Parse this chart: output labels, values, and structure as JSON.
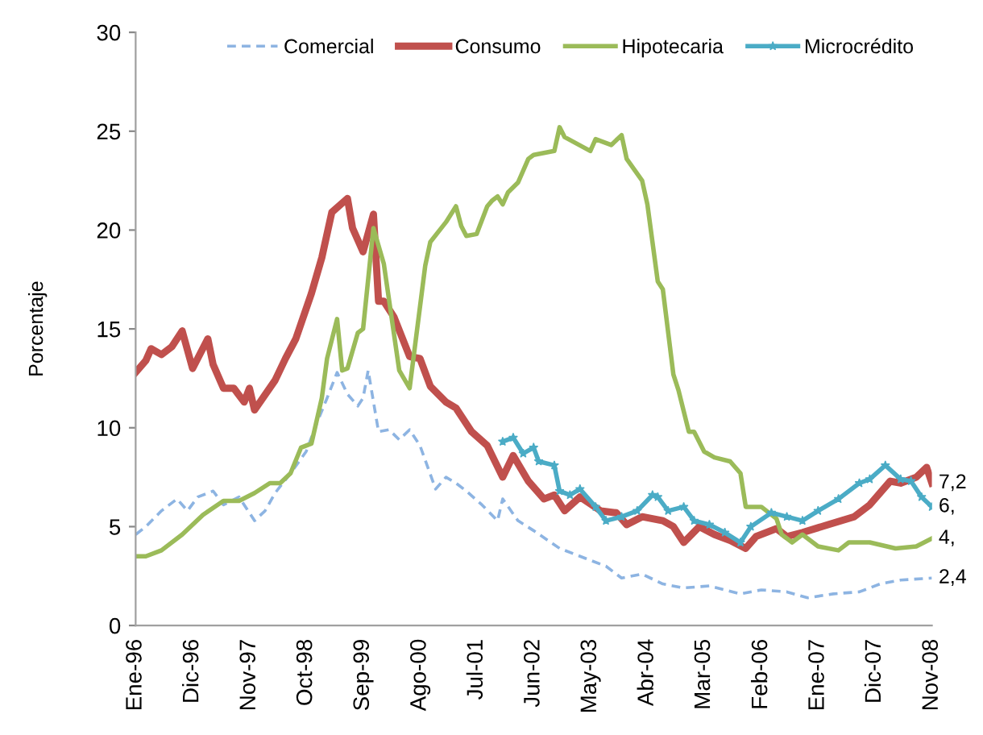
{
  "chart_data": {
    "type": "line",
    "ylabel": "Porcentaje",
    "legend": "top",
    "grid": false,
    "xlim": [
      "1996-01",
      "2008-11"
    ],
    "xticks": [
      {
        "value": "1996-01",
        "label": "Ene-96"
      },
      {
        "value": "1996-12",
        "label": "Dic-96"
      },
      {
        "value": "1997-11",
        "label": "Nov-97"
      },
      {
        "value": "1998-10",
        "label": "Oct-98"
      },
      {
        "value": "1999-09",
        "label": "Sep-99"
      },
      {
        "value": "2000-08",
        "label": "Ago-00"
      },
      {
        "value": "2001-07",
        "label": "Jul-01"
      },
      {
        "value": "2002-06",
        "label": "Jun-02"
      },
      {
        "value": "2003-05",
        "label": "May-03"
      },
      {
        "value": "2004-04",
        "label": "Abr-04"
      },
      {
        "value": "2005-03",
        "label": "Mar-05"
      },
      {
        "value": "2006-02",
        "label": "Feb-06"
      },
      {
        "value": "2007-01",
        "label": "Ene-07"
      },
      {
        "value": "2007-12",
        "label": "Dic-07"
      },
      {
        "value": "2008-11",
        "label": "Nov-08"
      }
    ],
    "ylim": [
      0,
      30
    ],
    "yticks": [
      0,
      5,
      10,
      15,
      20,
      25,
      30
    ],
    "series": [
      {
        "name": "Comercial",
        "color": "#8db4e2",
        "line_style": "dashed",
        "marker": "none",
        "x": [
          "1996-01",
          "1996-03",
          "1996-06",
          "1996-09",
          "1996-11",
          "1997-01",
          "1997-04",
          "1997-06",
          "1997-09",
          "1997-10",
          "1997-12",
          "1998-02",
          "1998-04",
          "1998-07",
          "1998-10",
          "1998-12",
          "1999-02",
          "1999-04",
          "1999-06",
          "1999-08",
          "1999-09",
          "1999-10",
          "1999-12",
          "2000-02",
          "2000-04",
          "2000-06",
          "2000-08",
          "2000-11",
          "2001-01",
          "2001-03",
          "2001-05",
          "2001-08",
          "2001-11",
          "2001-12",
          "2002-03",
          "2002-06",
          "2002-11",
          "2003-04",
          "2003-08",
          "2003-11",
          "2004-03",
          "2004-07",
          "2004-11",
          "2005-04",
          "2005-10",
          "2006-02",
          "2006-07",
          "2006-11",
          "2007-04",
          "2007-09",
          "2008-01",
          "2008-05",
          "2008-11"
        ],
        "values": [
          4.6,
          5.0,
          5.8,
          6.4,
          5.8,
          6.5,
          6.8,
          6.1,
          6.5,
          6.1,
          5.3,
          5.8,
          6.7,
          7.7,
          8.8,
          10.2,
          11.5,
          12.8,
          11.7,
          11.1,
          11.5,
          12.9,
          9.8,
          9.9,
          9.4,
          9.9,
          9.1,
          6.9,
          7.5,
          7.2,
          6.8,
          6.1,
          5.3,
          6.4,
          5.3,
          4.8,
          3.9,
          3.4,
          3.0,
          2.4,
          2.6,
          2.1,
          1.9,
          2.0,
          1.6,
          1.8,
          1.7,
          1.4,
          1.6,
          1.7,
          2.1,
          2.3,
          2.4
        ]
      },
      {
        "name": "Consumo",
        "color": "#c0504d",
        "line_style": "solid",
        "marker": "none",
        "x": [
          "1996-01",
          "1996-03",
          "1996-04",
          "1996-06",
          "1996-08",
          "1996-10",
          "1996-12",
          "1997-03",
          "1997-04",
          "1997-06",
          "1997-08",
          "1997-10",
          "1997-11",
          "1997-12",
          "1998-04",
          "1998-06",
          "1998-08",
          "1998-11",
          "1999-01",
          "1999-03",
          "1999-06",
          "1999-07",
          "1999-09",
          "1999-11",
          "1999-12",
          "2000-01",
          "2000-03",
          "2000-06",
          "2000-08",
          "2000-10",
          "2001-01",
          "2001-03",
          "2001-06",
          "2001-09",
          "2001-12",
          "2002-02",
          "2002-05",
          "2002-08",
          "2002-10",
          "2002-12",
          "2003-03",
          "2003-07",
          "2003-10",
          "2003-12",
          "2004-03",
          "2004-07",
          "2004-09",
          "2004-11",
          "2005-02",
          "2005-05",
          "2005-08",
          "2005-11",
          "2006-01",
          "2006-05",
          "2006-07",
          "2006-10",
          "2007-03",
          "2007-08",
          "2007-11",
          "2008-03",
          "2008-05",
          "2008-08",
          "2008-10",
          "2008-11"
        ],
        "values": [
          12.8,
          13.4,
          14.0,
          13.7,
          14.1,
          14.9,
          13.0,
          14.5,
          13.2,
          12.0,
          12.0,
          11.3,
          12.0,
          10.9,
          12.4,
          13.5,
          14.5,
          16.8,
          18.6,
          20.9,
          21.6,
          20.1,
          18.9,
          20.8,
          16.4,
          16.4,
          15.6,
          13.6,
          13.5,
          12.1,
          11.3,
          11.0,
          9.8,
          9.1,
          7.5,
          8.6,
          7.3,
          6.4,
          6.6,
          5.8,
          6.5,
          5.8,
          5.7,
          5.1,
          5.5,
          5.3,
          5.0,
          4.2,
          5.0,
          4.6,
          4.3,
          3.9,
          4.5,
          4.9,
          4.5,
          4.7,
          5.1,
          5.5,
          6.1,
          7.3,
          7.2,
          7.5,
          8.0,
          7.2
        ]
      },
      {
        "name": "Hipotecaria",
        "color": "#9bbb59",
        "line_style": "solid",
        "marker": "none",
        "x": [
          "1996-01",
          "1996-03",
          "1996-06",
          "1996-10",
          "1997-02",
          "1997-06",
          "1997-09",
          "1997-12",
          "1998-03",
          "1998-05",
          "1998-07",
          "1998-09",
          "1998-11",
          "1999-01",
          "1999-02",
          "1999-04",
          "1999-05",
          "1999-06",
          "1999-08",
          "1999-09",
          "1999-11",
          "2000-01",
          "2000-04",
          "2000-06",
          "2000-09",
          "2000-10",
          "2001-01",
          "2001-03",
          "2001-04",
          "2001-05",
          "2001-07",
          "2001-09",
          "2001-10",
          "2001-11",
          "2001-12",
          "2002-01",
          "2002-03",
          "2002-05",
          "2002-06",
          "2002-08",
          "2002-10",
          "2002-11",
          "2002-12",
          "2003-05",
          "2003-06",
          "2003-09",
          "2003-11",
          "2003-12",
          "2004-03",
          "2004-04",
          "2004-06",
          "2004-07",
          "2004-09",
          "2004-10",
          "2004-12",
          "2005-01",
          "2005-03",
          "2005-05",
          "2005-08",
          "2005-10",
          "2005-11",
          "2006-02",
          "2006-05",
          "2006-06",
          "2006-08",
          "2006-10",
          "2007-01",
          "2007-05",
          "2007-07",
          "2007-11",
          "2008-04",
          "2008-08",
          "2008-11"
        ],
        "values": [
          3.5,
          3.5,
          3.8,
          4.6,
          5.6,
          6.3,
          6.3,
          6.7,
          7.2,
          7.2,
          7.7,
          9.0,
          9.2,
          11.5,
          13.5,
          15.5,
          12.9,
          13.0,
          14.8,
          15.0,
          20.1,
          18.3,
          12.9,
          12.0,
          18.2,
          19.4,
          20.4,
          21.2,
          20.2,
          19.7,
          19.8,
          21.2,
          21.5,
          21.7,
          21.3,
          21.9,
          22.4,
          23.6,
          23.8,
          23.9,
          24.0,
          25.2,
          24.7,
          24.0,
          24.6,
          24.3,
          24.8,
          23.6,
          22.5,
          21.3,
          17.4,
          17.0,
          12.7,
          11.9,
          9.8,
          9.8,
          8.8,
          8.5,
          8.3,
          7.7,
          6.0,
          6.0,
          5.4,
          4.6,
          4.2,
          4.6,
          4.0,
          3.8,
          4.2,
          4.2,
          3.9,
          4.0,
          4.4
        ]
      },
      {
        "name": "Microcrédito",
        "color": "#4bacc6",
        "line_style": "solid",
        "marker": "star",
        "x": [
          "2001-12",
          "2002-02",
          "2002-04",
          "2002-06",
          "2002-07",
          "2002-10",
          "2002-11",
          "2003-01",
          "2003-03",
          "2003-06",
          "2003-08",
          "2003-11",
          "2004-02",
          "2004-05",
          "2004-06",
          "2004-08",
          "2004-11",
          "2005-01",
          "2005-04",
          "2005-07",
          "2005-10",
          "2005-12",
          "2006-04",
          "2006-07",
          "2006-10",
          "2007-01",
          "2007-05",
          "2007-09",
          "2007-11",
          "2008-02",
          "2008-05",
          "2008-07",
          "2008-09",
          "2008-11"
        ],
        "values": [
          9.3,
          9.5,
          8.7,
          9.0,
          8.3,
          8.1,
          6.8,
          6.6,
          6.9,
          6.0,
          5.3,
          5.5,
          5.8,
          6.6,
          6.5,
          5.8,
          6.0,
          5.3,
          5.1,
          4.7,
          4.2,
          5.0,
          5.7,
          5.5,
          5.3,
          5.8,
          6.4,
          7.2,
          7.4,
          8.1,
          7.4,
          7.3,
          6.5,
          6.0
        ]
      }
    ],
    "annotations": [
      {
        "text": "7,2",
        "x": "2008-11",
        "y": 7.2
      },
      {
        "text": "6,",
        "x": "2008-11",
        "y": 6.0
      },
      {
        "text": "4,",
        "x": "2008-11",
        "y": 4.4
      },
      {
        "text": "2,4",
        "x": "2008-11",
        "y": 2.4
      }
    ]
  }
}
